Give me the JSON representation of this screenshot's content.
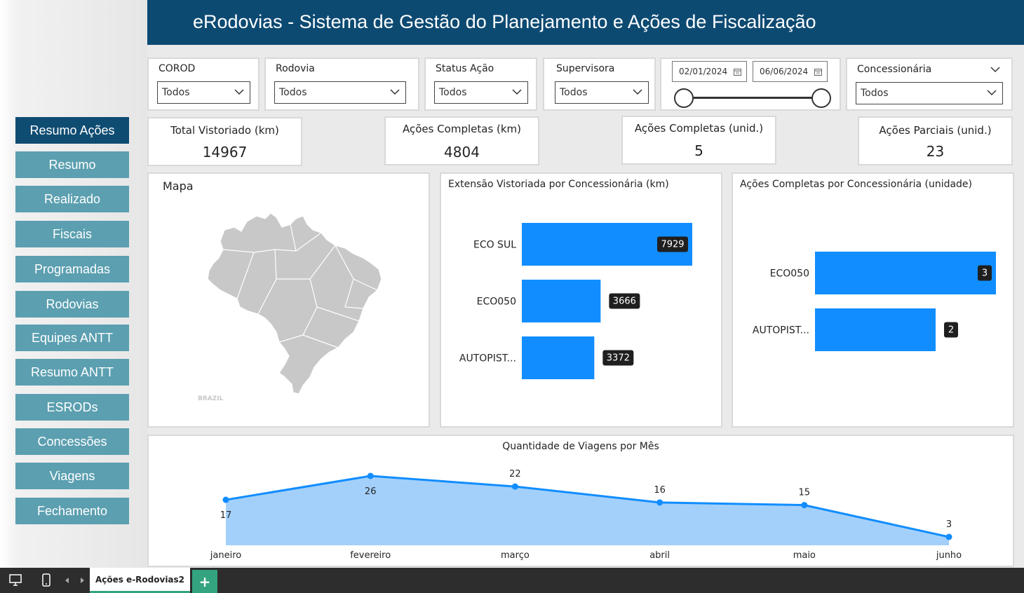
{
  "header": {
    "title": "eRodovias - Sistema de Gestão do Planejamento e Ações de Fiscalização"
  },
  "nav": [
    {
      "label": "Resumo Ações",
      "active": true
    },
    {
      "label": "Resumo"
    },
    {
      "label": "Realizado"
    },
    {
      "label": "Fiscais"
    },
    {
      "label": "Programadas"
    },
    {
      "label": "Rodovias"
    },
    {
      "label": "Equipes ANTT"
    },
    {
      "label": "Resumo ANTT"
    },
    {
      "label": "ESRODs"
    },
    {
      "label": "Concessões"
    },
    {
      "label": "Viagens"
    },
    {
      "label": "Fechamento"
    }
  ],
  "slicers": {
    "corod": {
      "label": "COROD",
      "value": "Todos"
    },
    "rodovia": {
      "label": "Rodovia",
      "value": "Todos"
    },
    "status": {
      "label": "Status Ação",
      "value": "Todos"
    },
    "supervisora": {
      "label": "Supervisora",
      "value": "Todos"
    },
    "date": {
      "start": "02/01/2024",
      "end": "06/06/2024"
    },
    "concessionaria": {
      "label": "Concessionária",
      "value": "Todos"
    }
  },
  "kpis": {
    "total": {
      "label": "Total Vistoriado (km)",
      "value": "14967"
    },
    "completas_km": {
      "label": "Ações Completas (km)",
      "value": "4804"
    },
    "completas_unid": {
      "label": "Ações Completas (unid.)",
      "value": "5"
    },
    "parciais": {
      "label": "Ações Parciais (unid.)",
      "value": "23"
    }
  },
  "map": {
    "title": "Mapa",
    "caption": "BRAZIL"
  },
  "chart_data": [
    {
      "type": "bar",
      "orientation": "horizontal",
      "title": "Extensão Vistoriada por Concessionária (km)",
      "categories": [
        "ECO SUL",
        "ECO050",
        "AUTOPIST..."
      ],
      "values": [
        7929,
        3666,
        3372
      ],
      "color": "#118dff"
    },
    {
      "type": "bar",
      "orientation": "horizontal",
      "title": "Ações Completas por Concessionária (unidade)",
      "categories": [
        "ECO050",
        "AUTOPIST..."
      ],
      "values": [
        3,
        2
      ],
      "color": "#118dff"
    },
    {
      "type": "area",
      "title": "Quantidade de Viagens por Mês",
      "categories": [
        "janeiro",
        "fevereiro",
        "março",
        "abril",
        "maio",
        "junho"
      ],
      "values": [
        17,
        26,
        22,
        16,
        15,
        3
      ],
      "line_color": "#118dff",
      "fill_color": "#a3d0fb"
    }
  ],
  "taskbar": {
    "tab_label": "Ações e-Rodovias2",
    "add_label": "+"
  }
}
